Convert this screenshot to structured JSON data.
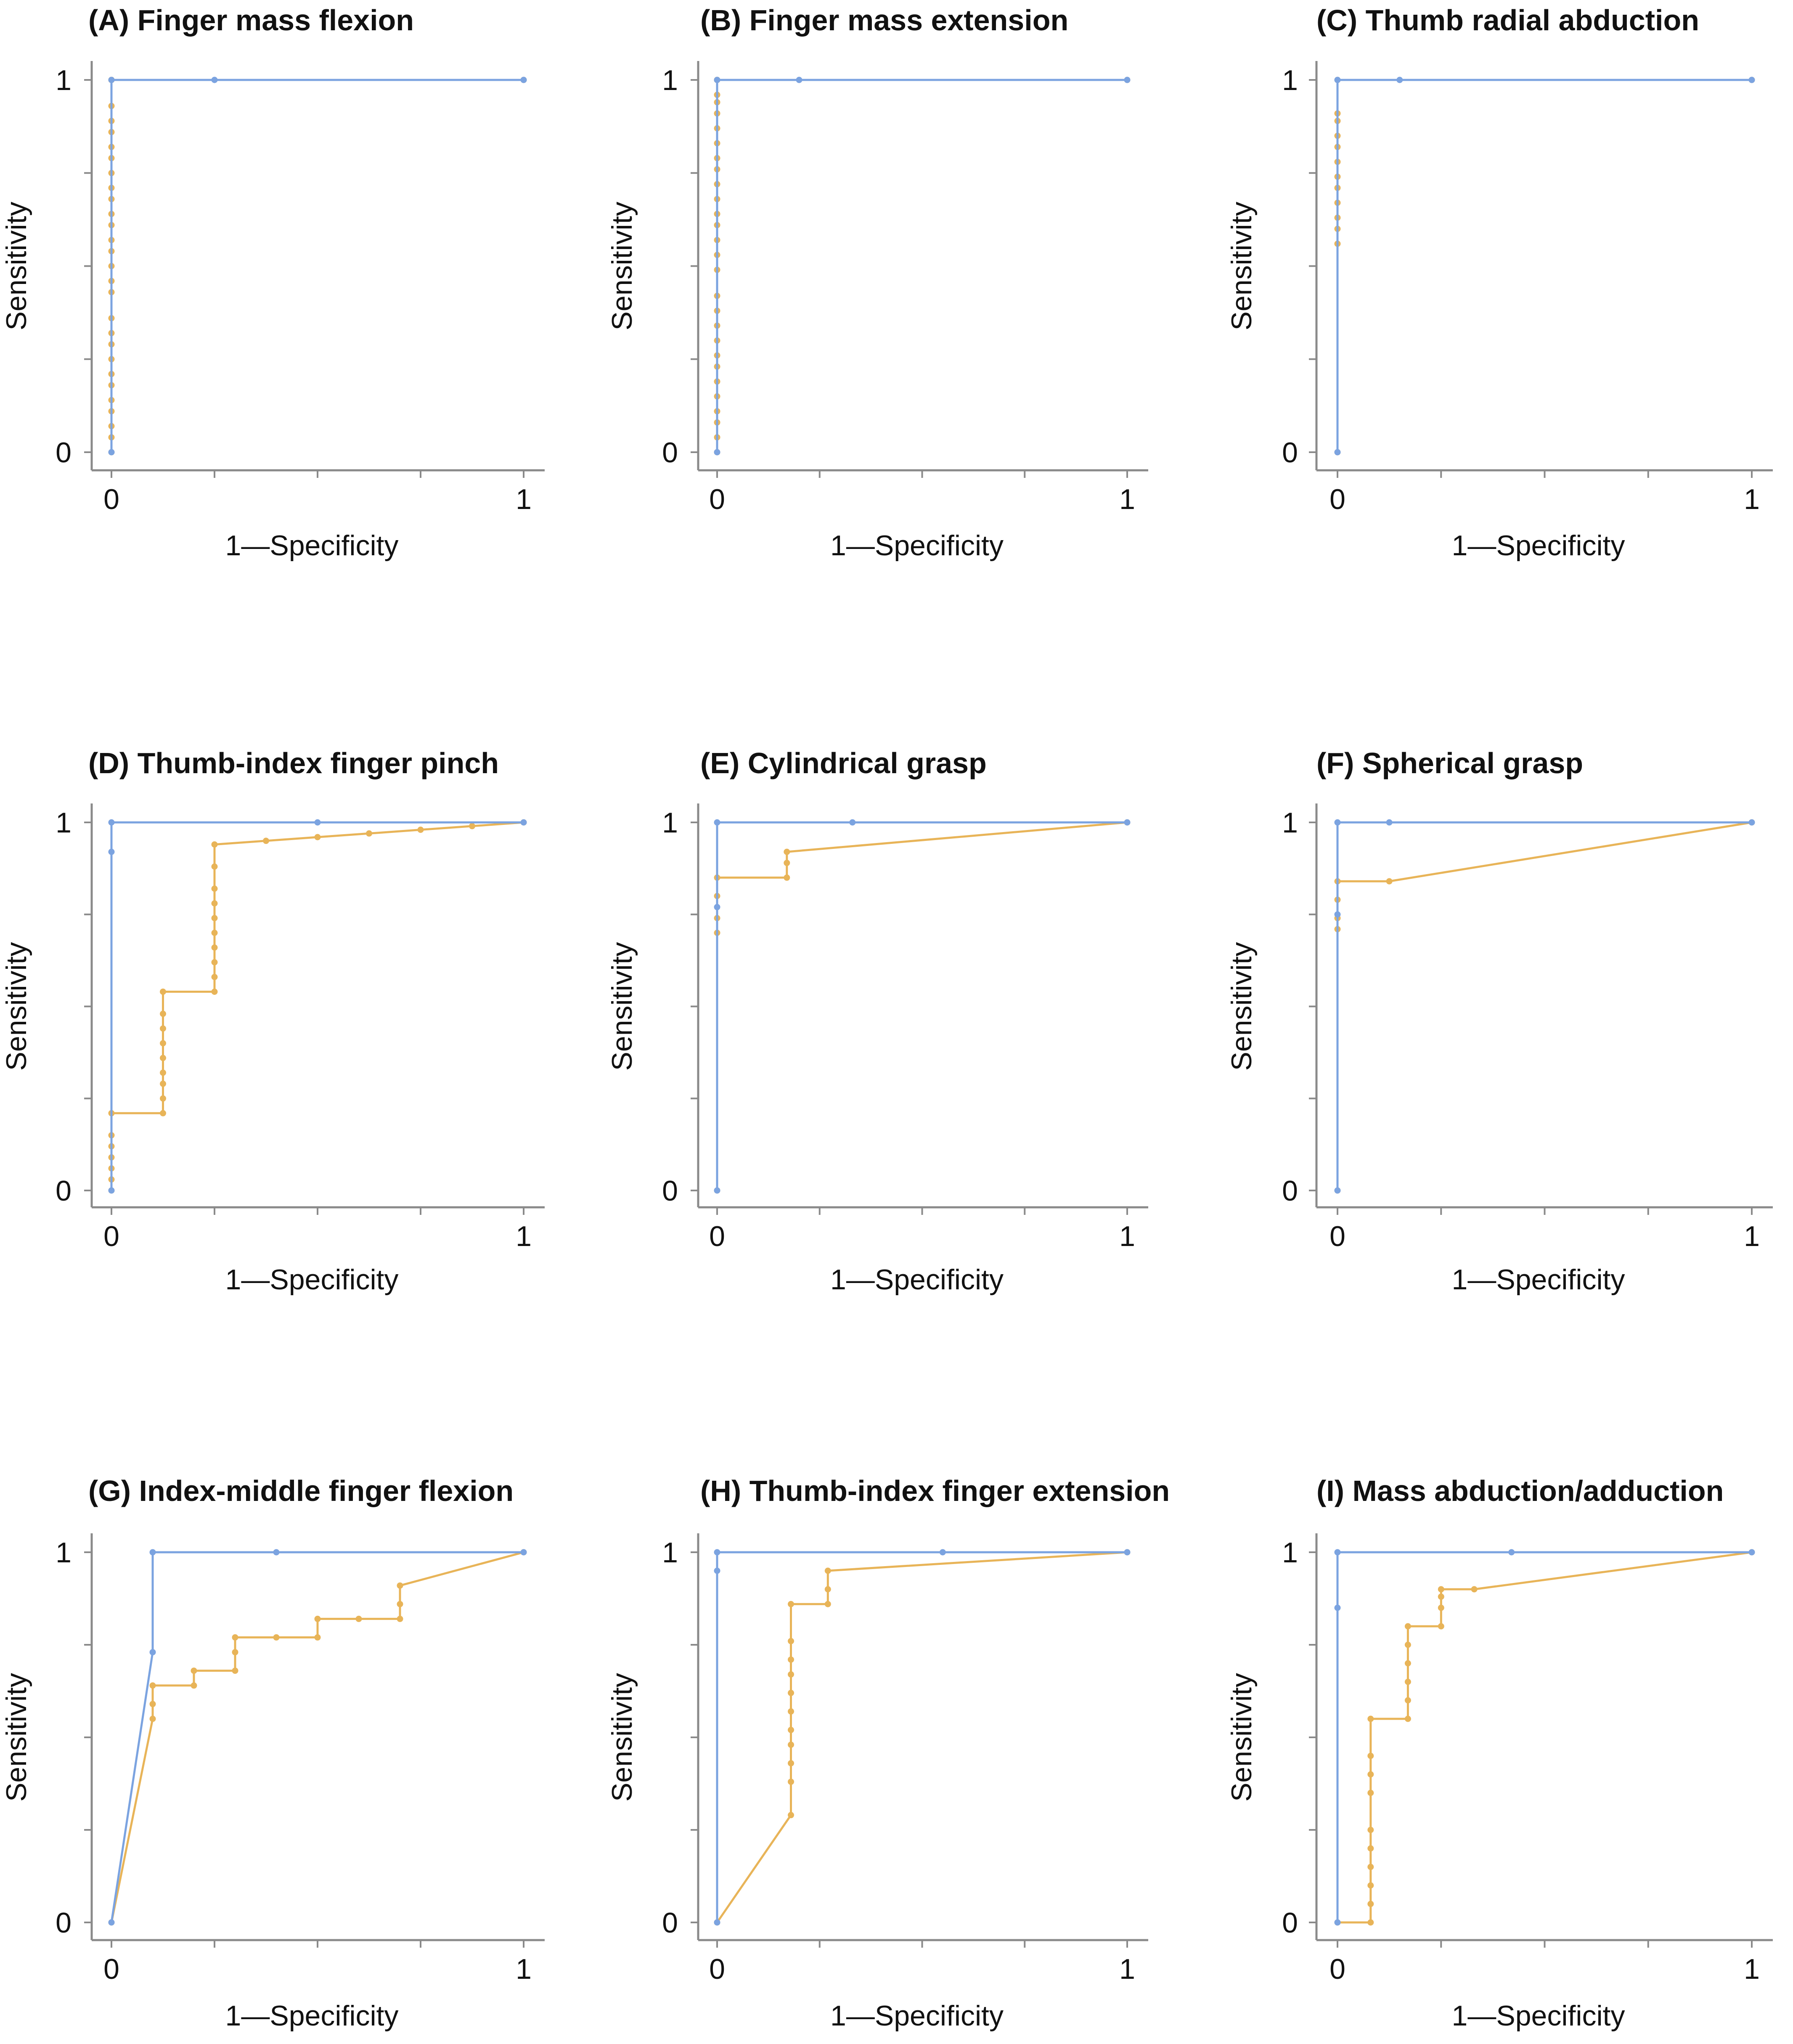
{
  "colors": {
    "series_a": "#7ba3e0",
    "series_b": "#e8b458",
    "axis": "#8a8a8a"
  },
  "chart_data": [
    {
      "type": "line",
      "title": "(A) Finger mass flexion",
      "xlabel": "1—Specificity",
      "ylabel": "Sensitivity",
      "xlim": [
        0,
        1
      ],
      "ylim": [
        0,
        1
      ],
      "xticks": [
        "0",
        "1"
      ],
      "yticks": [
        "0",
        "1"
      ],
      "grid": false,
      "series": [
        {
          "x": [
            0,
            0,
            0.25,
            1
          ],
          "y": [
            0,
            1,
            1,
            1
          ]
        },
        {
          "x": [
            0,
            0,
            0,
            0,
            0,
            0,
            0,
            0,
            0,
            0,
            0,
            0,
            0,
            0,
            0,
            0,
            0,
            0,
            0,
            0,
            0,
            0,
            0,
            0,
            0,
            0,
            0,
            0,
            0,
            0,
            1
          ],
          "y": [
            0,
            0.04,
            0.07,
            0.11,
            0.14,
            0.18,
            0.21,
            0.25,
            0.29,
            0.32,
            0.36,
            0.43,
            0.46,
            0.5,
            0.54,
            0.57,
            0.61,
            0.64,
            0.68,
            0.71,
            0.75,
            0.79,
            0.82,
            0.86,
            0.89,
            0.93,
            1,
            1,
            1,
            1,
            1
          ]
        }
      ]
    },
    {
      "type": "line",
      "title": "(B) Finger mass extension",
      "xlabel": "1—Specificity",
      "ylabel": "Sensitivity",
      "xlim": [
        0,
        1
      ],
      "ylim": [
        0,
        1
      ],
      "xticks": [
        "0",
        "1"
      ],
      "yticks": [
        "0",
        "1"
      ],
      "grid": false,
      "series": [
        {
          "x": [
            0,
            0,
            0.2,
            1
          ],
          "y": [
            0,
            1,
            1,
            1
          ]
        },
        {
          "x": [
            0,
            0,
            0,
            0,
            0,
            0,
            0,
            0,
            0,
            0,
            0,
            0,
            0,
            0,
            0,
            0,
            0,
            0,
            0,
            0,
            0,
            0,
            0,
            0,
            0,
            0,
            0,
            0,
            0,
            1
          ],
          "y": [
            0,
            0.04,
            0.08,
            0.11,
            0.15,
            0.19,
            0.23,
            0.26,
            0.3,
            0.34,
            0.38,
            0.42,
            0.49,
            0.53,
            0.57,
            0.61,
            0.64,
            0.68,
            0.72,
            0.76,
            0.79,
            0.83,
            0.87,
            0.91,
            0.94,
            0.96,
            1,
            1,
            1,
            1
          ]
        }
      ]
    },
    {
      "type": "line",
      "title": "(C) Thumb radial abduction",
      "xlabel": "1—Specificity",
      "ylabel": "Sensitivity",
      "xlim": [
        0,
        1
      ],
      "ylim": [
        0,
        1
      ],
      "xticks": [
        "0",
        "1"
      ],
      "yticks": [
        "0",
        "1"
      ],
      "grid": false,
      "series": [
        {
          "x": [
            0,
            0,
            0.15,
            1
          ],
          "y": [
            0,
            1,
            1,
            1
          ]
        },
        {
          "x": [
            0,
            0,
            0,
            0,
            0,
            0,
            0,
            0,
            0,
            0,
            0,
            0,
            0,
            1
          ],
          "y": [
            0,
            0.56,
            0.6,
            0.63,
            0.67,
            0.71,
            0.74,
            0.78,
            0.82,
            0.85,
            0.89,
            0.91,
            1,
            1
          ]
        }
      ]
    },
    {
      "type": "line",
      "title": "(D) Thumb-index finger pinch",
      "xlabel": "1—Specificity",
      "ylabel": "Sensitivity",
      "xlim": [
        0,
        1
      ],
      "ylim": [
        0,
        1
      ],
      "xticks": [
        "0",
        "1"
      ],
      "yticks": [
        "0",
        "1"
      ],
      "grid": false,
      "series": [
        {
          "x": [
            0,
            0,
            0,
            0.5,
            1
          ],
          "y": [
            0,
            0.92,
            1,
            1,
            1
          ]
        },
        {
          "x": [
            0,
            0,
            0,
            0,
            0,
            0,
            0,
            0.125,
            0.125,
            0.125,
            0.125,
            0.125,
            0.125,
            0.125,
            0.125,
            0.125,
            0.25,
            0.25,
            0.25,
            0.25,
            0.25,
            0.25,
            0.25,
            0.25,
            0.25,
            0.25,
            0.375,
            0.5,
            0.625,
            0.75,
            0.875,
            1
          ],
          "y": [
            0,
            0.03,
            0.06,
            0.09,
            0.12,
            0.15,
            0.21,
            0.21,
            0.25,
            0.29,
            0.32,
            0.36,
            0.4,
            0.44,
            0.48,
            0.54,
            0.54,
            0.58,
            0.62,
            0.66,
            0.7,
            0.74,
            0.78,
            0.82,
            0.88,
            0.94,
            0.95,
            0.96,
            0.97,
            0.98,
            0.99,
            1
          ]
        }
      ]
    },
    {
      "type": "line",
      "title": "(E) Cylindrical grasp",
      "xlabel": "1—Specificity",
      "ylabel": "Sensitivity",
      "xlim": [
        0,
        1
      ],
      "ylim": [
        0,
        1
      ],
      "xticks": [
        "0",
        "1"
      ],
      "yticks": [
        "0",
        "1"
      ],
      "grid": false,
      "series": [
        {
          "x": [
            0,
            0,
            0,
            0.33,
            1
          ],
          "y": [
            0,
            0.77,
            1,
            1,
            1
          ]
        },
        {
          "x": [
            0,
            0,
            0,
            0,
            0,
            0.17,
            0.17,
            0.17,
            1
          ],
          "y": [
            0,
            0.7,
            0.74,
            0.8,
            0.85,
            0.85,
            0.89,
            0.92,
            1
          ]
        }
      ]
    },
    {
      "type": "line",
      "title": "(F) Spherical grasp",
      "xlabel": "1—Specificity",
      "ylabel": "Sensitivity",
      "xlim": [
        0,
        1
      ],
      "ylim": [
        0,
        1
      ],
      "xticks": [
        "0",
        "1"
      ],
      "yticks": [
        "0",
        "1"
      ],
      "grid": false,
      "series": [
        {
          "x": [
            0,
            0,
            0,
            0.125,
            1
          ],
          "y": [
            0,
            0.75,
            1,
            1,
            1
          ]
        },
        {
          "x": [
            0,
            0,
            0,
            0,
            0,
            0.125,
            1
          ],
          "y": [
            0,
            0.71,
            0.74,
            0.79,
            0.84,
            0.84,
            1
          ]
        }
      ]
    },
    {
      "type": "line",
      "title": "(G) Index-middle finger flexion",
      "xlabel": "1—Specificity",
      "ylabel": "Sensitivity",
      "xlim": [
        0,
        1
      ],
      "ylim": [
        0,
        1
      ],
      "xticks": [
        "0",
        "1"
      ],
      "yticks": [
        "0",
        "1"
      ],
      "grid": false,
      "series": [
        {
          "x": [
            0,
            0.1,
            0.1,
            0.4,
            1
          ],
          "y": [
            0,
            0.73,
            1,
            1,
            1
          ]
        },
        {
          "x": [
            0,
            0.1,
            0.1,
            0.1,
            0.2,
            0.2,
            0.3,
            0.3,
            0.3,
            0.4,
            0.5,
            0.5,
            0.6,
            0.7,
            0.7,
            0.7,
            1
          ],
          "y": [
            0,
            0.55,
            0.59,
            0.64,
            0.64,
            0.68,
            0.68,
            0.73,
            0.77,
            0.77,
            0.77,
            0.82,
            0.82,
            0.82,
            0.86,
            0.91,
            1
          ]
        }
      ]
    },
    {
      "type": "line",
      "title": "(H) Thumb-index finger extension",
      "xlabel": "1—Specificity",
      "ylabel": "Sensitivity",
      "xlim": [
        0,
        1
      ],
      "ylim": [
        0,
        1
      ],
      "xticks": [
        "0",
        "1"
      ],
      "yticks": [
        "0",
        "1"
      ],
      "grid": false,
      "series": [
        {
          "x": [
            0,
            0,
            0,
            0.55,
            1
          ],
          "y": [
            0,
            0.95,
            1,
            1,
            1
          ]
        },
        {
          "x": [
            0,
            0.18,
            0.18,
            0.18,
            0.18,
            0.18,
            0.18,
            0.18,
            0.18,
            0.18,
            0.18,
            0.18,
            0.27,
            0.27,
            0.27,
            1
          ],
          "y": [
            0,
            0.29,
            0.38,
            0.43,
            0.48,
            0.52,
            0.57,
            0.62,
            0.67,
            0.71,
            0.76,
            0.86,
            0.86,
            0.9,
            0.95,
            1
          ]
        }
      ]
    },
    {
      "type": "line",
      "title": "(I) Mass abduction/adduction",
      "xlabel": "1—Specificity",
      "ylabel": "Sensitivity",
      "xlim": [
        0,
        1
      ],
      "ylim": [
        0,
        1
      ],
      "xticks": [
        "0",
        "1"
      ],
      "yticks": [
        "0",
        "1"
      ],
      "grid": false,
      "series": [
        {
          "x": [
            0,
            0,
            0,
            0.42,
            1
          ],
          "y": [
            0,
            0.85,
            1,
            1,
            1
          ]
        },
        {
          "x": [
            0,
            0.08,
            0.08,
            0.08,
            0.08,
            0.08,
            0.08,
            0.08,
            0.08,
            0.08,
            0.08,
            0.17,
            0.17,
            0.17,
            0.17,
            0.17,
            0.17,
            0.25,
            0.25,
            0.25,
            0.25,
            0.33,
            1
          ],
          "y": [
            0,
            0,
            0.05,
            0.1,
            0.15,
            0.2,
            0.25,
            0.35,
            0.4,
            0.45,
            0.55,
            0.55,
            0.6,
            0.65,
            0.7,
            0.75,
            0.8,
            0.8,
            0.85,
            0.88,
            0.9,
            0.9,
            1
          ]
        }
      ]
    }
  ]
}
